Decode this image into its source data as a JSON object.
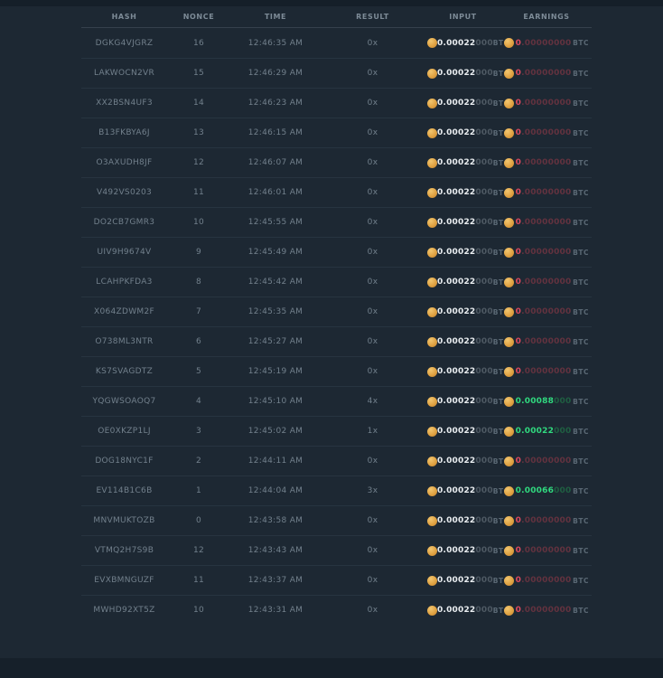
{
  "colors": {
    "background": "#1d2833",
    "strip": "#151f29",
    "divider": "#273440",
    "text_muted": "#72808c",
    "value_white": "#e9edf0",
    "value_dim": "#4e5963",
    "earn_win": "#30d97f",
    "earn_win_dim": "#1f5f42",
    "earn_loss": "#dd4960",
    "earn_loss_dim": "#63323f",
    "coin_gold": "#dfa040"
  },
  "icons": {
    "coin": "coin-icon"
  },
  "table": {
    "columns": [
      "HASH",
      "NONCE",
      "TIME",
      "RESULT",
      "INPUT",
      "EARNINGS"
    ],
    "btc_label": "BTC",
    "rows": [
      {
        "hash": "DGKG4VJGRZ",
        "nonce": "16",
        "time": "12:46:35 AM",
        "result": "0x",
        "input": {
          "strong": "0.00022",
          "dim": "000"
        },
        "earnings": {
          "strong": "0",
          "dim": ".00000000",
          "state": "loss"
        }
      },
      {
        "hash": "LAKWOCN2VR",
        "nonce": "15",
        "time": "12:46:29 AM",
        "result": "0x",
        "input": {
          "strong": "0.00022",
          "dim": "000"
        },
        "earnings": {
          "strong": "0",
          "dim": ".00000000",
          "state": "loss"
        }
      },
      {
        "hash": "XX2BSN4UF3",
        "nonce": "14",
        "time": "12:46:23 AM",
        "result": "0x",
        "input": {
          "strong": "0.00022",
          "dim": "000"
        },
        "earnings": {
          "strong": "0",
          "dim": ".00000000",
          "state": "loss"
        }
      },
      {
        "hash": "B13FKBYA6J",
        "nonce": "13",
        "time": "12:46:15 AM",
        "result": "0x",
        "input": {
          "strong": "0.00022",
          "dim": "000"
        },
        "earnings": {
          "strong": "0",
          "dim": ".00000000",
          "state": "loss"
        }
      },
      {
        "hash": "O3AXUDH8JF",
        "nonce": "12",
        "time": "12:46:07 AM",
        "result": "0x",
        "input": {
          "strong": "0.00022",
          "dim": "000"
        },
        "earnings": {
          "strong": "0",
          "dim": ".00000000",
          "state": "loss"
        }
      },
      {
        "hash": "V492VS0203",
        "nonce": "11",
        "time": "12:46:01 AM",
        "result": "0x",
        "input": {
          "strong": "0.00022",
          "dim": "000"
        },
        "earnings": {
          "strong": "0",
          "dim": ".00000000",
          "state": "loss"
        }
      },
      {
        "hash": "DO2CB7GMR3",
        "nonce": "10",
        "time": "12:45:55 AM",
        "result": "0x",
        "input": {
          "strong": "0.00022",
          "dim": "000"
        },
        "earnings": {
          "strong": "0",
          "dim": ".00000000",
          "state": "loss"
        }
      },
      {
        "hash": "UIV9H9674V",
        "nonce": "9",
        "time": "12:45:49 AM",
        "result": "0x",
        "input": {
          "strong": "0.00022",
          "dim": "000"
        },
        "earnings": {
          "strong": "0",
          "dim": ".00000000",
          "state": "loss"
        }
      },
      {
        "hash": "LCAHPKFDA3",
        "nonce": "8",
        "time": "12:45:42 AM",
        "result": "0x",
        "input": {
          "strong": "0.00022",
          "dim": "000"
        },
        "earnings": {
          "strong": "0",
          "dim": ".00000000",
          "state": "loss"
        }
      },
      {
        "hash": "X064ZDWM2F",
        "nonce": "7",
        "time": "12:45:35 AM",
        "result": "0x",
        "input": {
          "strong": "0.00022",
          "dim": "000"
        },
        "earnings": {
          "strong": "0",
          "dim": ".00000000",
          "state": "loss"
        }
      },
      {
        "hash": "O738ML3NTR",
        "nonce": "6",
        "time": "12:45:27 AM",
        "result": "0x",
        "input": {
          "strong": "0.00022",
          "dim": "000"
        },
        "earnings": {
          "strong": "0",
          "dim": ".00000000",
          "state": "loss"
        }
      },
      {
        "hash": "KS7SVAGDTZ",
        "nonce": "5",
        "time": "12:45:19 AM",
        "result": "0x",
        "input": {
          "strong": "0.00022",
          "dim": "000"
        },
        "earnings": {
          "strong": "0",
          "dim": ".00000000",
          "state": "loss"
        }
      },
      {
        "hash": "YQGWSOAOQ7",
        "nonce": "4",
        "time": "12:45:10 AM",
        "result": "4x",
        "input": {
          "strong": "0.00022",
          "dim": "000"
        },
        "earnings": {
          "strong": "0.00088",
          "dim": "000",
          "state": "win"
        }
      },
      {
        "hash": "OE0XKZP1LJ",
        "nonce": "3",
        "time": "12:45:02 AM",
        "result": "1x",
        "input": {
          "strong": "0.00022",
          "dim": "000"
        },
        "earnings": {
          "strong": "0.00022",
          "dim": "000",
          "state": "win"
        }
      },
      {
        "hash": "DOG18NYC1F",
        "nonce": "2",
        "time": "12:44:11 AM",
        "result": "0x",
        "input": {
          "strong": "0.00022",
          "dim": "000"
        },
        "earnings": {
          "strong": "0",
          "dim": ".00000000",
          "state": "loss"
        }
      },
      {
        "hash": "EV114B1C6B",
        "nonce": "1",
        "time": "12:44:04 AM",
        "result": "3x",
        "input": {
          "strong": "0.00022",
          "dim": "000"
        },
        "earnings": {
          "strong": "0.00066",
          "dim": "000",
          "state": "win"
        }
      },
      {
        "hash": "MNVMUKTOZB",
        "nonce": "0",
        "time": "12:43:58 AM",
        "result": "0x",
        "input": {
          "strong": "0.00022",
          "dim": "000"
        },
        "earnings": {
          "strong": "0",
          "dim": ".00000000",
          "state": "loss"
        }
      },
      {
        "hash": "VTMQ2H7S9B",
        "nonce": "12",
        "time": "12:43:43 AM",
        "result": "0x",
        "input": {
          "strong": "0.00022",
          "dim": "000"
        },
        "earnings": {
          "strong": "0",
          "dim": ".00000000",
          "state": "loss"
        }
      },
      {
        "hash": "EVXBMNGUZF",
        "nonce": "11",
        "time": "12:43:37 AM",
        "result": "0x",
        "input": {
          "strong": "0.00022",
          "dim": "000"
        },
        "earnings": {
          "strong": "0",
          "dim": ".00000000",
          "state": "loss"
        }
      },
      {
        "hash": "MWHD92XT5Z",
        "nonce": "10",
        "time": "12:43:31 AM",
        "result": "0x",
        "input": {
          "strong": "0.00022",
          "dim": "000"
        },
        "earnings": {
          "strong": "0",
          "dim": ".00000000",
          "state": "loss"
        }
      }
    ]
  }
}
